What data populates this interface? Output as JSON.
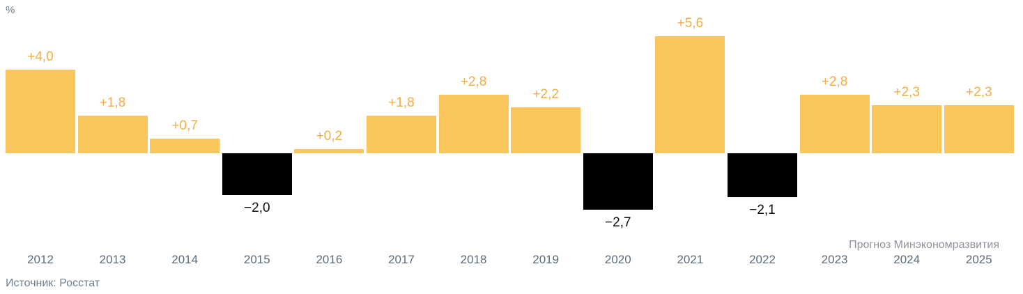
{
  "unit_label": "%",
  "source": "Источник: Росстат",
  "forecast_note": "Прогноз Минэкономразвития",
  "colors": {
    "positive_bar": "#FBC55E",
    "negative_bar": "#000000",
    "positive_label": "#F5AD43",
    "negative_label": "#111111",
    "axis_text": "#5C6B7A",
    "source_text": "#6C7F8F",
    "forecast_text": "#8E939B"
  },
  "chart_data": {
    "type": "bar",
    "title": "",
    "xlabel": "",
    "ylabel": "%",
    "legend": "none",
    "grid": false,
    "baseline": 0,
    "ylim": [
      -3,
      6
    ],
    "categories": [
      "2012",
      "2013",
      "2014",
      "2015",
      "2016",
      "2017",
      "2018",
      "2019",
      "2020",
      "2021",
      "2022",
      "2023",
      "2024",
      "2025"
    ],
    "values": [
      4.0,
      1.8,
      0.7,
      -2.0,
      0.2,
      1.8,
      2.8,
      2.2,
      -2.7,
      5.6,
      -2.1,
      2.8,
      2.3,
      2.3
    ],
    "value_labels": [
      "+4,0",
      "+1,8",
      "+0,7",
      "−2,0",
      "+0,2",
      "+1,8",
      "+2,8",
      "+2,2",
      "−2,7",
      "+5,6",
      "−2,1",
      "+2,8",
      "+2,3",
      "+2,3"
    ],
    "forecast_categories": [
      "2023",
      "2024",
      "2025"
    ],
    "annotations": [
      "Прогноз Минэкономразвития"
    ]
  }
}
